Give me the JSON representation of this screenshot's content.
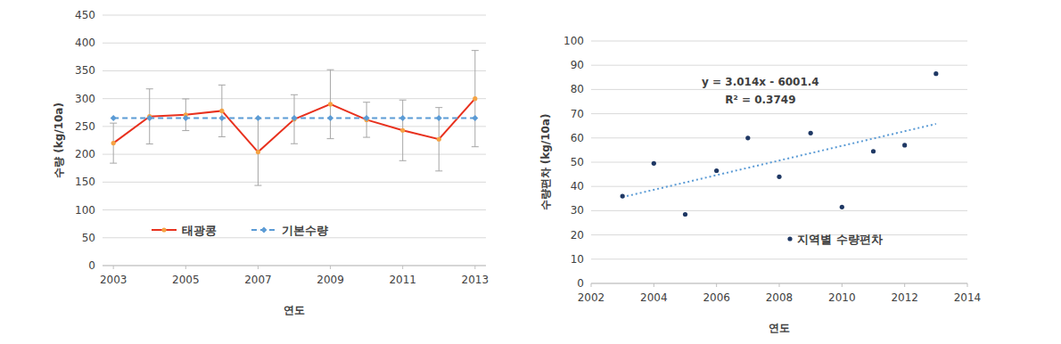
{
  "chart_data": [
    {
      "type": "line",
      "xlabel": "연도",
      "ylabel": "수량 (kg/10a)",
      "x": [
        2003,
        2004,
        2005,
        2006,
        2007,
        2008,
        2009,
        2010,
        2011,
        2012,
        2013
      ],
      "xlim": [
        2002.7,
        2013.3
      ],
      "xticks": [
        2003,
        2005,
        2007,
        2009,
        2011,
        2013
      ],
      "ylim": [
        0,
        450
      ],
      "yticks": [
        0,
        50,
        100,
        150,
        200,
        250,
        300,
        350,
        400,
        450
      ],
      "grid": true,
      "legend": "bottom-left",
      "series": [
        {
          "name": "태광콩",
          "color": "#e8311e",
          "marker": "circle",
          "line_style": "solid",
          "values": [
            220,
            268,
            271,
            278,
            204,
            263,
            290,
            262,
            243,
            227,
            300
          ],
          "errors": [
            36,
            49.5,
            28.5,
            46.5,
            60,
            44,
            62,
            31.5,
            54.5,
            57,
            86.5
          ]
        },
        {
          "name": "기본수량",
          "color": "#5b9bd5",
          "marker": "diamond",
          "line_style": "dashed",
          "values": [
            265,
            265,
            265,
            265,
            265,
            265,
            265,
            265,
            265,
            265,
            265
          ]
        }
      ]
    },
    {
      "type": "scatter",
      "xlabel": "연도",
      "ylabel": "수량편차 (kg/10a)",
      "x": [
        2003,
        2004,
        2005,
        2006,
        2007,
        2008,
        2009,
        2010,
        2011,
        2012,
        2013
      ],
      "xlim": [
        2002,
        2014
      ],
      "xticks": [
        2002,
        2004,
        2006,
        2008,
        2010,
        2012,
        2014
      ],
      "ylim": [
        0,
        100
      ],
      "yticks": [
        0,
        10,
        20,
        30,
        40,
        50,
        60,
        70,
        80,
        90,
        100
      ],
      "grid": true,
      "legend": "bottom",
      "series": [
        {
          "name": "지역별 수량편차",
          "color": "#1f3864",
          "marker": "circle",
          "values": [
            36,
            49.5,
            28.5,
            46.5,
            60,
            44,
            62,
            31.5,
            54.5,
            57,
            86.5
          ]
        }
      ],
      "trendline": {
        "x": [
          2003,
          2013
        ],
        "values": [
          35.6,
          65.8
        ],
        "color": "#5b9bd5",
        "line_style": "dotted"
      },
      "annotations": [
        "y = 3.014x - 6001.4",
        "R² = 0.3749"
      ]
    }
  ]
}
